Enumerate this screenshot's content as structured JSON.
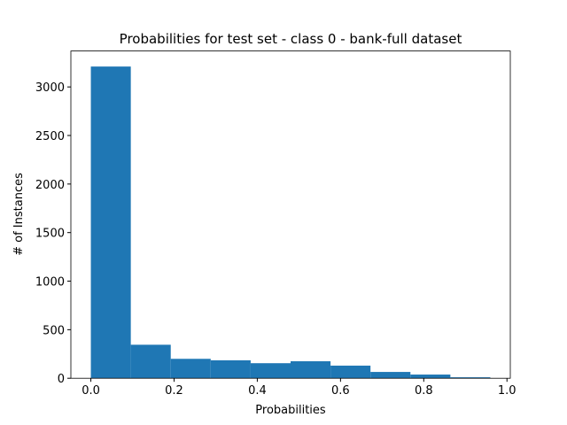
{
  "chart_data": {
    "type": "histogram",
    "title": "Probabilities for test set - class 0 - bank-full dataset",
    "x_label": "Probabilities",
    "y_label": "# of Instances",
    "bins": [
      0,
      0.096,
      0.192,
      0.288,
      0.384,
      0.48,
      0.576,
      0.672,
      0.768,
      0.864,
      0.96
    ],
    "values": [
      3210,
      345,
      200,
      185,
      155,
      175,
      130,
      65,
      38,
      10
    ],
    "color": "#1f77b4",
    "xlim": [
      -0.048,
      1.008
    ],
    "xticks": [
      {
        "value": 0,
        "label": "0.0"
      },
      0.2,
      0.4,
      0.6,
      0.8,
      {
        "value": 1,
        "label": "1.0"
      }
    ],
    "ylim": [
      0,
      3370
    ],
    "yticks": [
      0,
      500,
      1000,
      1500,
      2000,
      2500,
      3000
    ]
  }
}
